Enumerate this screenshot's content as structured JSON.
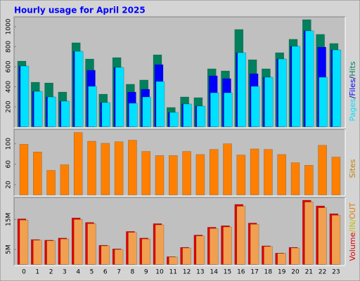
{
  "chart_data": [
    {
      "type": "bar",
      "title": "Hourly usage for April 2025",
      "legend_separator": "/",
      "ylim": [
        0,
        1091
      ],
      "yticks": [
        200,
        400,
        600,
        800,
        1000
      ],
      "series": [
        {
          "name": "Hits",
          "color": "#00805c",
          "values": [
            656,
            445,
            438,
            347,
            839,
            677,
            326,
            691,
            425,
            467,
            719,
            193,
            298,
            291,
            579,
            558,
            972,
            670,
            579,
            740,
            874,
            1070,
            923,
            832
          ]
        },
        {
          "name": "Files",
          "color": "#0000ff",
          "values": [
            607,
            354,
            298,
            256,
            754,
            565,
            242,
            593,
            347,
            375,
            621,
            144,
            228,
            207,
            509,
            481,
            740,
            530,
            495,
            677,
            804,
            958,
            796,
            768
          ]
        },
        {
          "name": "Pages",
          "color": "#00e0ff",
          "values": [
            607,
            354,
            298,
            256,
            754,
            404,
            242,
            593,
            235,
            298,
            453,
            144,
            228,
            207,
            340,
            340,
            740,
            404,
            495,
            677,
            804,
            958,
            495,
            768
          ]
        }
      ]
    },
    {
      "type": "bar",
      "ylim": [
        0,
        127
      ],
      "yticks": [
        20,
        60,
        100
      ],
      "series": [
        {
          "name": "Sites",
          "color": "#ff8000",
          "values": [
            99,
            84,
            48,
            59,
            122,
            105,
            101,
            104,
            107,
            85,
            77,
            77,
            85,
            79,
            89,
            100,
            78,
            90,
            89,
            79,
            63,
            58,
            97,
            74
          ]
        }
      ]
    },
    {
      "type": "bar",
      "ylim": [
        0,
        22.1
      ],
      "yticks": [
        {
          "value": 5,
          "label": "5M"
        },
        {
          "value": 15,
          "label": "15M"
        }
      ],
      "label": "Volume",
      "categories": [
        "0",
        "1",
        "2",
        "3",
        "4",
        "5",
        "6",
        "7",
        "8",
        "9",
        "10",
        "11",
        "12",
        "13",
        "14",
        "15",
        "16",
        "17",
        "18",
        "19",
        "20",
        "21",
        "22",
        "23"
      ],
      "series": [
        {
          "name": "IN",
          "color": "#e00000",
          "values": [
            15.2,
            8.3,
            8.1,
            8.8,
            15.5,
            14.0,
            6.4,
            5.2,
            11.0,
            8.8,
            13.6,
            2.6,
            5.7,
            9.8,
            12.4,
            12.9,
            20.0,
            13.8,
            6.2,
            3.8,
            5.7,
            21.4,
            19.5,
            16.9
          ]
        },
        {
          "name": "OUT",
          "color": "#f0a050",
          "values": [
            14.8,
            8.1,
            7.9,
            8.5,
            15.0,
            13.6,
            6.2,
            5.0,
            10.7,
            8.5,
            13.2,
            2.5,
            5.5,
            9.5,
            12.0,
            12.5,
            19.4,
            13.4,
            6.0,
            3.7,
            5.5,
            20.8,
            18.9,
            16.4
          ]
        }
      ]
    }
  ]
}
